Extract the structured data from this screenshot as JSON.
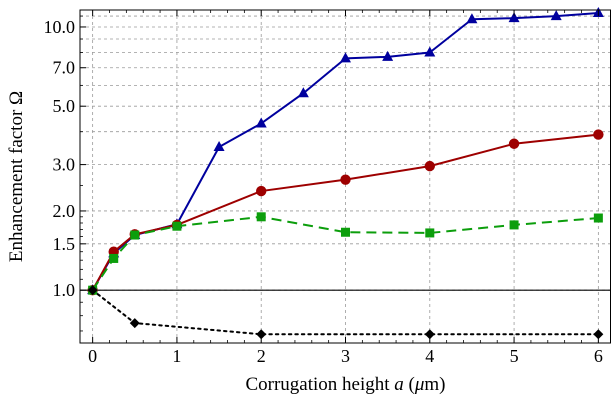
{
  "chart_data": {
    "type": "line",
    "title": "",
    "xlabel_main": "Corrugation height ",
    "xlabel_var": "a",
    "xlabel_unit_open": " (",
    "xlabel_unit_mu": "μ",
    "xlabel_unit_rest": "m)",
    "ylabel": "Enhancement factor Ω",
    "x_scale": "linear",
    "y_scale": "log",
    "xlim": [
      -0.15,
      6.15
    ],
    "ylim": [
      0.63,
      11.6
    ],
    "grid": true,
    "x_ticks": [
      0,
      1,
      2,
      3,
      4,
      5,
      6
    ],
    "x_tick_labels": [
      "0",
      "1",
      "2",
      "3",
      "4",
      "5",
      "6"
    ],
    "y_ticks": [
      1.0,
      1.5,
      2.0,
      3.0,
      5.0,
      7.0,
      10.0
    ],
    "y_tick_labels": [
      "1.0",
      "1.5",
      "2.0",
      "3.0",
      "5.0",
      "7.0",
      "10.0"
    ],
    "y_grid": [
      1.0,
      1.5,
      2.0,
      3.0,
      4.0,
      5.0,
      6.0,
      7.0,
      8.0,
      9.0,
      10.0,
      11.0
    ],
    "reference_line": 1.0,
    "series": [
      {
        "color": "#00009e",
        "marker": "triangle",
        "dash": "solid",
        "x": [
          0,
          0.25,
          0.5,
          1,
          1.5,
          2,
          2.5,
          3,
          3.5,
          4,
          4.5,
          5,
          5.5,
          6
        ],
        "y": [
          1.0,
          1.38,
          1.62,
          1.78,
          3.5,
          4.3,
          5.6,
          7.6,
          7.7,
          8.0,
          10.7,
          10.8,
          11.0,
          11.3
        ]
      },
      {
        "color": "#9e0000",
        "marker": "circle",
        "dash": "solid",
        "x": [
          0,
          0.25,
          0.5,
          1,
          2,
          3,
          4,
          5,
          6
        ],
        "y": [
          1.0,
          1.4,
          1.63,
          1.77,
          2.38,
          2.63,
          2.96,
          3.6,
          3.9
        ]
      },
      {
        "color": "#0c9e0c",
        "marker": "square",
        "dash": "dashed",
        "x": [
          0,
          0.25,
          0.5,
          1,
          2,
          3,
          4,
          5,
          6
        ],
        "y": [
          1.0,
          1.32,
          1.62,
          1.75,
          1.9,
          1.66,
          1.65,
          1.77,
          1.88
        ]
      },
      {
        "color": "#000000",
        "marker": "diamond",
        "dash": "dotted",
        "x": [
          0,
          0.5,
          2,
          4,
          6
        ],
        "y": [
          1.0,
          0.75,
          0.68,
          0.68,
          0.68
        ]
      }
    ]
  }
}
